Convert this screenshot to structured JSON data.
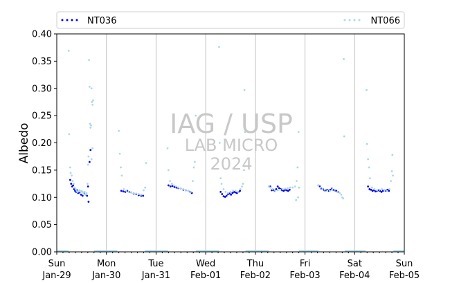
{
  "chart_data": {
    "type": "scatter",
    "ylabel": "Albedo",
    "xlabel": "",
    "ylim": [
      0,
      0.4
    ],
    "y_ticks": [
      "0.00",
      "0.05",
      "0.10",
      "0.15",
      "0.20",
      "0.25",
      "0.30",
      "0.35",
      "0.40"
    ],
    "x_ticks": [
      {
        "day": "Sun",
        "date": "Jan-29"
      },
      {
        "day": "Mon",
        "date": "Jan-30"
      },
      {
        "day": "Tue",
        "date": "Jan-31"
      },
      {
        "day": "Wed",
        "date": "Feb-01"
      },
      {
        "day": "Thu",
        "date": "Feb-02"
      },
      {
        "day": "Fri",
        "date": "Feb-03"
      },
      {
        "day": "Sat",
        "date": "Feb-04"
      },
      {
        "day": "Sun",
        "date": "Feb-05"
      }
    ],
    "xlim_days": [
      0,
      7
    ],
    "vertical_grid": true,
    "legend_position": "top",
    "watermark": [
      "IAG / USP",
      "LAB MICRO",
      "2024"
    ],
    "series": [
      {
        "name": "NT036",
        "color": "#0000ee",
        "points": [
          [
            0.27,
            0.132
          ],
          [
            0.29,
            0.125
          ],
          [
            0.31,
            0.12
          ],
          [
            0.33,
            0.122
          ],
          [
            0.35,
            0.115
          ],
          [
            0.37,
            0.112
          ],
          [
            0.39,
            0.11
          ],
          [
            0.41,
            0.113
          ],
          [
            0.43,
            0.108
          ],
          [
            0.46,
            0.109
          ],
          [
            0.49,
            0.105
          ],
          [
            0.52,
            0.103
          ],
          [
            0.55,
            0.108
          ],
          [
            0.58,
            0.105
          ],
          [
            0.61,
            0.103
          ],
          [
            0.63,
            0.12
          ],
          [
            0.64,
            0.092
          ],
          [
            0.66,
            0.165
          ],
          [
            0.68,
            0.187
          ],
          [
            1.3,
            0.112
          ],
          [
            1.34,
            0.111
          ],
          [
            1.38,
            0.11
          ],
          [
            1.42,
            0.112
          ],
          [
            1.46,
            0.11
          ],
          [
            1.5,
            0.109
          ],
          [
            1.55,
            0.107
          ],
          [
            1.6,
            0.106
          ],
          [
            1.65,
            0.104
          ],
          [
            1.7,
            0.103
          ],
          [
            1.74,
            0.103
          ],
          [
            2.25,
            0.122
          ],
          [
            2.29,
            0.12
          ],
          [
            2.33,
            0.121
          ],
          [
            2.37,
            0.119
          ],
          [
            2.41,
            0.118
          ],
          [
            2.45,
            0.117
          ],
          [
            2.5,
            0.116
          ],
          [
            2.55,
            0.114
          ],
          [
            2.6,
            0.113
          ],
          [
            2.65,
            0.112
          ],
          [
            2.69,
            0.11
          ],
          [
            2.72,
            0.108
          ],
          [
            3.3,
            0.11
          ],
          [
            3.33,
            0.106
          ],
          [
            3.36,
            0.102
          ],
          [
            3.39,
            0.101
          ],
          [
            3.42,
            0.103
          ],
          [
            3.45,
            0.106
          ],
          [
            3.48,
            0.107
          ],
          [
            3.51,
            0.105
          ],
          [
            3.54,
            0.108
          ],
          [
            3.57,
            0.11
          ],
          [
            3.6,
            0.109
          ],
          [
            3.63,
            0.108
          ],
          [
            3.66,
            0.11
          ],
          [
            3.69,
            0.112
          ],
          [
            4.3,
            0.12
          ],
          [
            4.33,
            0.113
          ],
          [
            4.36,
            0.114
          ],
          [
            4.39,
            0.112
          ],
          [
            4.42,
            0.115
          ],
          [
            4.45,
            0.12
          ],
          [
            4.48,
            0.117
          ],
          [
            4.51,
            0.115
          ],
          [
            4.54,
            0.113
          ],
          [
            4.57,
            0.112
          ],
          [
            4.6,
            0.114
          ],
          [
            4.63,
            0.113
          ],
          [
            4.66,
            0.112
          ],
          [
            4.69,
            0.114
          ],
          [
            5.27,
            0.122
          ],
          [
            5.3,
            0.12
          ],
          [
            5.33,
            0.116
          ],
          [
            5.36,
            0.115
          ],
          [
            5.39,
            0.113
          ],
          [
            5.42,
            0.113
          ],
          [
            5.45,
            0.114
          ],
          [
            5.48,
            0.112
          ],
          [
            5.51,
            0.114
          ],
          [
            5.54,
            0.116
          ],
          [
            5.57,
            0.114
          ],
          [
            5.6,
            0.113
          ],
          [
            5.63,
            0.112
          ],
          [
            5.66,
            0.11
          ],
          [
            6.27,
            0.12
          ],
          [
            6.3,
            0.115
          ],
          [
            6.33,
            0.114
          ],
          [
            6.36,
            0.112
          ],
          [
            6.39,
            0.113
          ],
          [
            6.42,
            0.111
          ],
          [
            6.45,
            0.112
          ],
          [
            6.48,
            0.113
          ],
          [
            6.51,
            0.112
          ],
          [
            6.54,
            0.11
          ],
          [
            6.57,
            0.112
          ],
          [
            6.6,
            0.113
          ],
          [
            6.63,
            0.112
          ],
          [
            6.66,
            0.114
          ],
          [
            6.69,
            0.112
          ]
        ]
      },
      {
        "name": "NT066",
        "color": "#add8e6",
        "points": [
          [
            0.24,
            0.369
          ],
          [
            0.25,
            0.216
          ],
          [
            0.27,
            0.155
          ],
          [
            0.28,
            0.145
          ],
          [
            0.3,
            0.14
          ],
          [
            0.32,
            0.13
          ],
          [
            0.34,
            0.125
          ],
          [
            0.36,
            0.118
          ],
          [
            0.38,
            0.115
          ],
          [
            0.4,
            0.112
          ],
          [
            0.42,
            0.11
          ],
          [
            0.44,
            0.111
          ],
          [
            0.46,
            0.113
          ],
          [
            0.48,
            0.11
          ],
          [
            0.5,
            0.112
          ],
          [
            0.52,
            0.11
          ],
          [
            0.54,
            0.108
          ],
          [
            0.56,
            0.11
          ],
          [
            0.58,
            0.105
          ],
          [
            0.6,
            0.108
          ],
          [
            0.62,
            0.125
          ],
          [
            0.63,
            0.16
          ],
          [
            0.64,
            0.175
          ],
          [
            0.65,
            0.352
          ],
          [
            0.66,
            0.303
          ],
          [
            0.67,
            0.235
          ],
          [
            0.68,
            0.228
          ],
          [
            0.69,
            0.232
          ],
          [
            0.7,
            0.3
          ],
          [
            0.71,
            0.275
          ],
          [
            0.72,
            0.27
          ],
          [
            0.73,
            0.278
          ],
          [
            0.72,
            0.19
          ],
          [
            0.7,
            0.17
          ],
          [
            1.25,
            0.222
          ],
          [
            1.27,
            0.18
          ],
          [
            1.29,
            0.155
          ],
          [
            1.31,
            0.14
          ],
          [
            1.35,
            0.115
          ],
          [
            1.4,
            0.112
          ],
          [
            1.45,
            0.11
          ],
          [
            1.5,
            0.109
          ],
          [
            1.55,
            0.108
          ],
          [
            1.6,
            0.107
          ],
          [
            1.65,
            0.106
          ],
          [
            1.7,
            0.105
          ],
          [
            1.75,
            0.113
          ],
          [
            1.78,
            0.118
          ],
          [
            1.8,
            0.163
          ],
          [
            2.23,
            0.19
          ],
          [
            2.25,
            0.15
          ],
          [
            2.28,
            0.13
          ],
          [
            2.32,
            0.125
          ],
          [
            2.36,
            0.122
          ],
          [
            2.4,
            0.12
          ],
          [
            2.45,
            0.118
          ],
          [
            2.5,
            0.116
          ],
          [
            2.55,
            0.115
          ],
          [
            2.6,
            0.113
          ],
          [
            2.65,
            0.112
          ],
          [
            2.7,
            0.11
          ],
          [
            2.74,
            0.13
          ],
          [
            2.76,
            0.155
          ],
          [
            2.78,
            0.165
          ],
          [
            2.8,
            0.25
          ],
          [
            3.27,
            0.376
          ],
          [
            3.28,
            0.2
          ],
          [
            3.3,
            0.135
          ],
          [
            3.32,
            0.125
          ],
          [
            3.36,
            0.115
          ],
          [
            3.4,
            0.11
          ],
          [
            3.45,
            0.108
          ],
          [
            3.5,
            0.11
          ],
          [
            3.55,
            0.112
          ],
          [
            3.6,
            0.112
          ],
          [
            3.65,
            0.11
          ],
          [
            3.7,
            0.115
          ],
          [
            3.73,
            0.12
          ],
          [
            3.75,
            0.125
          ],
          [
            3.77,
            0.15
          ],
          [
            3.78,
            0.297
          ],
          [
            3.79,
            0.22
          ],
          [
            4.27,
            0.12
          ],
          [
            4.31,
            0.118
          ],
          [
            4.35,
            0.115
          ],
          [
            4.4,
            0.112
          ],
          [
            4.45,
            0.113
          ],
          [
            4.5,
            0.114
          ],
          [
            4.55,
            0.115
          ],
          [
            4.6,
            0.116
          ],
          [
            4.65,
            0.117
          ],
          [
            4.7,
            0.118
          ],
          [
            4.75,
            0.118
          ],
          [
            4.8,
            0.12
          ],
          [
            4.83,
            0.13
          ],
          [
            4.85,
            0.155
          ],
          [
            4.87,
            0.22
          ],
          [
            4.88,
            0.118
          ],
          [
            4.86,
            0.1
          ],
          [
            4.82,
            0.095
          ],
          [
            5.27,
            0.122
          ],
          [
            5.31,
            0.118
          ],
          [
            5.35,
            0.115
          ],
          [
            5.4,
            0.114
          ],
          [
            5.45,
            0.113
          ],
          [
            5.5,
            0.112
          ],
          [
            5.55,
            0.115
          ],
          [
            5.6,
            0.114
          ],
          [
            5.65,
            0.11
          ],
          [
            5.7,
            0.108
          ],
          [
            5.73,
            0.105
          ],
          [
            5.75,
            0.1
          ],
          [
            5.77,
            0.098
          ],
          [
            5.78,
            0.354
          ],
          [
            5.79,
            0.212
          ],
          [
            6.24,
            0.297
          ],
          [
            6.25,
            0.198
          ],
          [
            6.27,
            0.17
          ],
          [
            6.29,
            0.155
          ],
          [
            6.31,
            0.135
          ],
          [
            6.35,
            0.118
          ],
          [
            6.4,
            0.115
          ],
          [
            6.45,
            0.113
          ],
          [
            6.5,
            0.114
          ],
          [
            6.55,
            0.115
          ],
          [
            6.6,
            0.113
          ],
          [
            6.65,
            0.112
          ],
          [
            6.7,
            0.115
          ],
          [
            6.73,
            0.13
          ],
          [
            6.75,
            0.148
          ],
          [
            6.76,
            0.178
          ],
          [
            6.77,
            0.14
          ]
        ],
        "zero_segments": [
          [
            0.0,
            0.24
          ],
          [
            0.75,
            1.22
          ],
          [
            1.78,
            2.25
          ],
          [
            2.8,
            3.27
          ],
          [
            3.8,
            4.27
          ],
          [
            4.88,
            5.27
          ],
          [
            5.8,
            6.22
          ],
          [
            6.78,
            7.0
          ]
        ]
      }
    ]
  }
}
